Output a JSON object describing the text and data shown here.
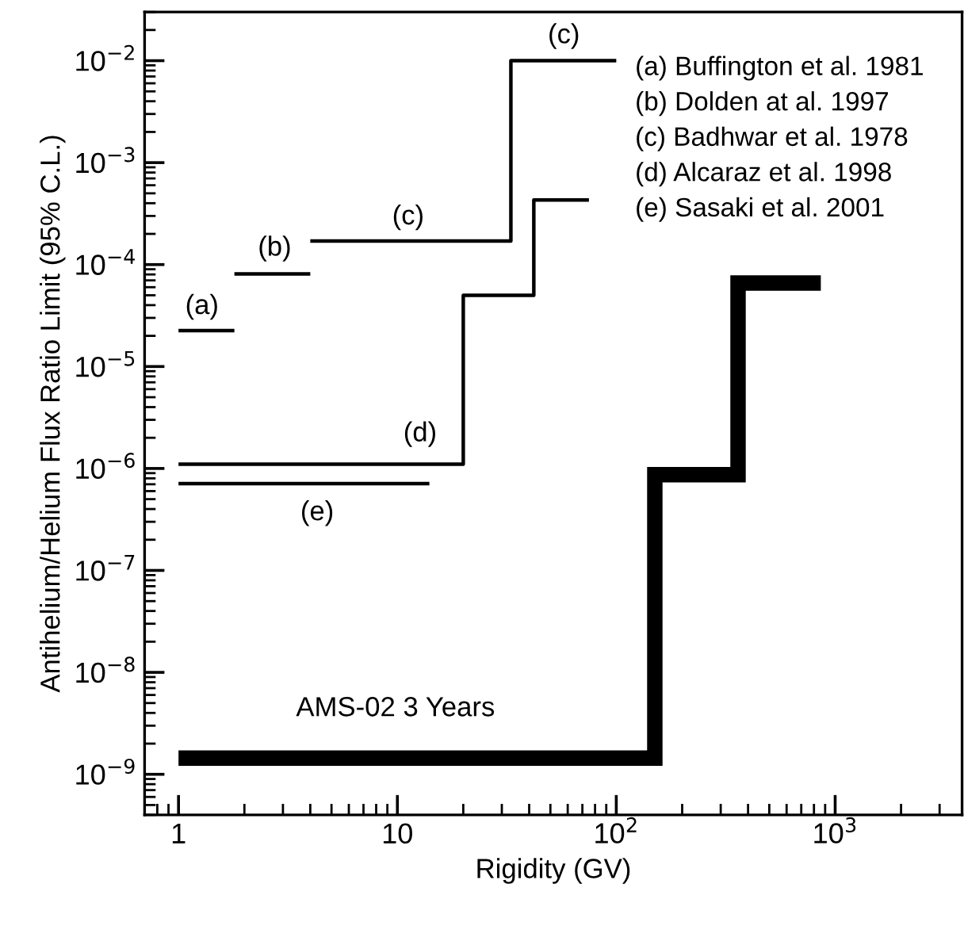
{
  "chart_data": {
    "type": "step",
    "xlabel": "Rigidity (GV)",
    "ylabel": "Antihelium/Helium Flux Ratio Limit (95% C.L.)",
    "log": "xy",
    "grid": false,
    "legend": false,
    "xlim": [
      0.7,
      3800
    ],
    "xticks": [
      1,
      10,
      {
        "value": 100,
        "label": "10$^{2}$"
      },
      {
        "value": 1000,
        "label": "10$^{3}$"
      }
    ],
    "ylim": [
      4e-10,
      0.03
    ],
    "yticks": [
      {
        "value": 1e-09,
        "label": "10$^{−9}$"
      },
      {
        "value": 1e-08,
        "label": "10$^{−8}$"
      },
      {
        "value": 1e-07,
        "label": "10$^{−7}$"
      },
      {
        "value": 1e-06,
        "label": "10$^{−6}$"
      },
      {
        "value": 1e-05,
        "label": "10$^{−5}$"
      },
      {
        "value": 0.0001,
        "label": "10$^{−4}$"
      },
      {
        "value": 0.001,
        "label": "10$^{−3}$"
      },
      {
        "value": 0.01,
        "label": "10$^{−2}$"
      }
    ],
    "series": [
      {
        "color": "#000000",
        "x": [
          1,
          1.8
        ],
        "values": [
          2.25e-05,
          2.25e-05
        ]
      },
      {
        "color": "#000000",
        "x": [
          1.8,
          4
        ],
        "values": [
          8.1e-05,
          8.1e-05
        ]
      },
      {
        "color": "#000000",
        "x": [
          4,
          33,
          100
        ],
        "values": [
          0.00017,
          0.01,
          0.01
        ]
      },
      {
        "color": "#000000",
        "x": [
          1,
          20,
          42,
          75
        ],
        "values": [
          1.1e-06,
          5e-05,
          0.00043,
          0.00043
        ]
      },
      {
        "color": "#000000",
        "x": [
          1,
          14
        ],
        "values": [
          7.1e-07,
          7.1e-07
        ]
      },
      {
        "color": "#000000",
        "x": [
          1,
          150,
          360,
          860
        ],
        "values": [
          1.44e-09,
          8.7e-07,
          6.6e-05,
          6.6e-05
        ]
      }
    ],
    "annotations": [
      {
        "text": "(a)",
        "x": 1.28,
        "y": 2.25e-05
      },
      {
        "text": "(b)",
        "x": 2.75,
        "y": 8.1e-05
      },
      {
        "text": "(c)",
        "x": 11.2,
        "y": 0.00017
      },
      {
        "text": "(c)",
        "x": 57.6,
        "y": 0.01
      },
      {
        "text": "(d)",
        "x": 12.7,
        "y": 1.1e-06
      },
      {
        "text": "(e)",
        "x": 4.3,
        "y": 7.1e-07
      },
      {
        "text": "AMS-02 3 Years",
        "x": 9.8,
        "y": 1.44e-09
      },
      "(a) Buffington et al. 1981",
      "(b) Dolden at al. 1997",
      "(c) Badhwar et al. 1978",
      "(d) Alcaraz et al. 1998",
      "(e) Sasaki et al. 2001"
    ]
  }
}
